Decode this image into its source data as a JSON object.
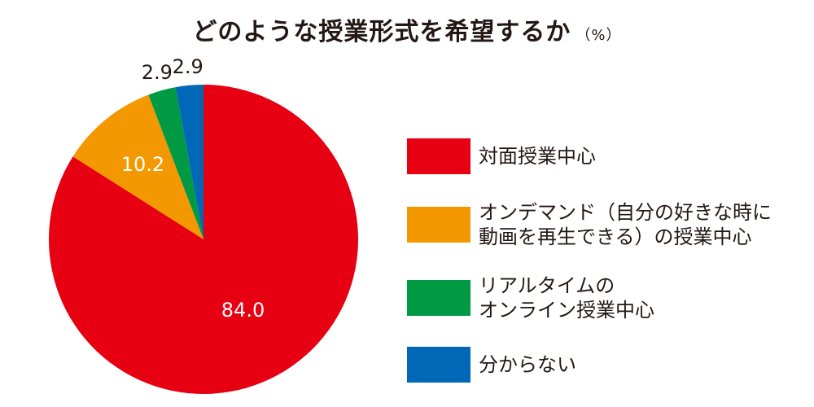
{
  "chart_data": {
    "type": "pie",
    "title": "どのような授業形式を希望するか",
    "unit": "（%）",
    "slices": [
      {
        "label": "対面授業中心",
        "value": 84.0,
        "display": "84.0",
        "color": "#E60012"
      },
      {
        "label": "オンデマンド（自分の好きな時に\n動画を再生できる）の授業中心",
        "value": 10.2,
        "display": "10.2",
        "color": "#F39800"
      },
      {
        "label": "リアルタイムの\nオンライン授業中心",
        "value": 2.9,
        "display": "2.9",
        "color": "#009944"
      },
      {
        "label": "分からない",
        "value": 2.9,
        "display": "2.9",
        "color": "#0068B7"
      }
    ]
  }
}
